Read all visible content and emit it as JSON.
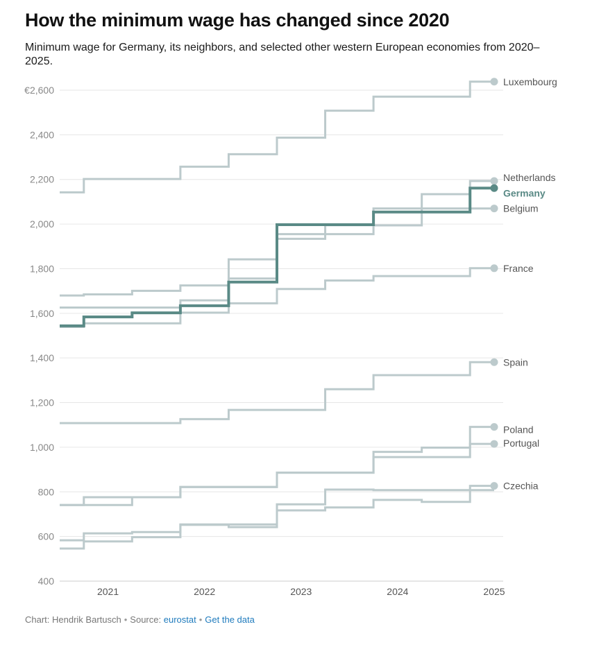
{
  "header": {
    "title": "How the minimum wage has changed since 2020",
    "subtitle": "Minimum wage for Germany, its neighbors, and selected other western European economies from 2020–2025."
  },
  "footer": {
    "credit": "Chart: Hendrik Bartusch",
    "source_label": "Source:",
    "source_link": "eurostat",
    "data_link": "Get the data"
  },
  "colors": {
    "highlight": "#5a8a86",
    "muted": "#bccacc",
    "grid": "#e6e6e6",
    "axis_text": "#888888",
    "label_text": "#555555",
    "link": "#1f7bbd"
  },
  "chart_data": {
    "type": "line",
    "step": true,
    "title": "How the minimum wage has changed since 2020",
    "ylabel": "",
    "xlabel": "",
    "y_unit_prefix": "€",
    "ylim": [
      400,
      2650
    ],
    "xlim": [
      2020.5,
      2025
    ],
    "y_ticks": [
      400,
      600,
      800,
      1000,
      1200,
      1400,
      1600,
      1800,
      2000,
      2200,
      2400,
      2600
    ],
    "y_tick_labels": [
      "400",
      "600",
      "800",
      "1,000",
      "1,200",
      "1,400",
      "1,600",
      "1,800",
      "2,000",
      "2,200",
      "2,400",
      "€2,600"
    ],
    "x_ticks": [
      "2021",
      "2022",
      "2023",
      "2024",
      "2025"
    ],
    "grid": true,
    "highlight_series": "Germany",
    "series": [
      {
        "name": "Luxembourg",
        "points": [
          [
            2020.5,
            2142
          ],
          [
            2020.75,
            2202
          ],
          [
            2021.75,
            2257
          ],
          [
            2022.25,
            2313
          ],
          [
            2022.75,
            2387
          ],
          [
            2023.25,
            2508
          ],
          [
            2023.75,
            2571
          ],
          [
            2024.75,
            2638
          ],
          [
            2025,
            2638
          ]
        ]
      },
      {
        "name": "Netherlands",
        "points": [
          [
            2020.5,
            1680
          ],
          [
            2020.75,
            1685
          ],
          [
            2021.25,
            1701
          ],
          [
            2021.75,
            1725
          ],
          [
            2022.25,
            1756
          ],
          [
            2022.75,
            1934
          ],
          [
            2023.25,
            1995
          ],
          [
            2023.75,
            2070
          ],
          [
            2024.25,
            2134
          ],
          [
            2024.75,
            2193
          ],
          [
            2025,
            2193
          ]
        ]
      },
      {
        "name": "Germany",
        "points": [
          [
            2020.5,
            1544
          ],
          [
            2020.75,
            1584
          ],
          [
            2021.25,
            1602
          ],
          [
            2021.75,
            1634
          ],
          [
            2022.25,
            1740
          ],
          [
            2022.75,
            1997
          ],
          [
            2023.75,
            2054
          ],
          [
            2024.75,
            2161
          ],
          [
            2025,
            2161
          ]
        ]
      },
      {
        "name": "Belgium",
        "points": [
          [
            2020.5,
            1626
          ],
          [
            2021.75,
            1658
          ],
          [
            2022.25,
            1842
          ],
          [
            2022.75,
            1955
          ],
          [
            2023.75,
            1994
          ],
          [
            2024.25,
            2070
          ],
          [
            2025,
            2070
          ]
        ]
      },
      {
        "name": "France",
        "points": [
          [
            2020.5,
            1539
          ],
          [
            2020.75,
            1555
          ],
          [
            2021.75,
            1603
          ],
          [
            2022.25,
            1645
          ],
          [
            2022.75,
            1709
          ],
          [
            2023.25,
            1747
          ],
          [
            2023.75,
            1767
          ],
          [
            2024.75,
            1802
          ],
          [
            2025,
            1802
          ]
        ]
      },
      {
        "name": "Spain",
        "points": [
          [
            2020.5,
            1108
          ],
          [
            2021.75,
            1126
          ],
          [
            2022.25,
            1167
          ],
          [
            2023.25,
            1260
          ],
          [
            2023.75,
            1323
          ],
          [
            2024.75,
            1381
          ],
          [
            2025,
            1381
          ]
        ]
      },
      {
        "name": "Poland",
        "points": [
          [
            2020.5,
            741
          ],
          [
            2020.75,
            776
          ],
          [
            2021.75,
            822
          ],
          [
            2022.75,
            886
          ],
          [
            2023.75,
            979
          ],
          [
            2024.25,
            998
          ],
          [
            2024.75,
            1091
          ],
          [
            2025,
            1091
          ]
        ]
      },
      {
        "name": "Portugal",
        "points": [
          [
            2020.5,
            741
          ],
          [
            2021.25,
            776
          ],
          [
            2021.75,
            822
          ],
          [
            2022.75,
            886
          ],
          [
            2023.75,
            956
          ],
          [
            2024.75,
            1015
          ],
          [
            2025,
            1015
          ]
        ]
      },
      {
        "name": "Czechia",
        "points": [
          [
            2020.5,
            546
          ],
          [
            2020.75,
            578
          ],
          [
            2021.25,
            597
          ],
          [
            2021.75,
            652
          ],
          [
            2022.25,
            642
          ],
          [
            2022.75,
            717
          ],
          [
            2023.25,
            730
          ],
          [
            2023.75,
            764
          ],
          [
            2024.25,
            755
          ],
          [
            2024.75,
            827
          ],
          [
            2025,
            827
          ]
        ]
      },
      {
        "name": "Czechia-alt",
        "label_hidden": true,
        "points": [
          [
            2020.5,
            583
          ],
          [
            2020.75,
            614
          ],
          [
            2021.25,
            620
          ],
          [
            2021.75,
            654
          ],
          [
            2022.75,
            744
          ],
          [
            2023.25,
            810
          ],
          [
            2023.75,
            808
          ],
          [
            2025,
            808
          ]
        ]
      }
    ]
  }
}
